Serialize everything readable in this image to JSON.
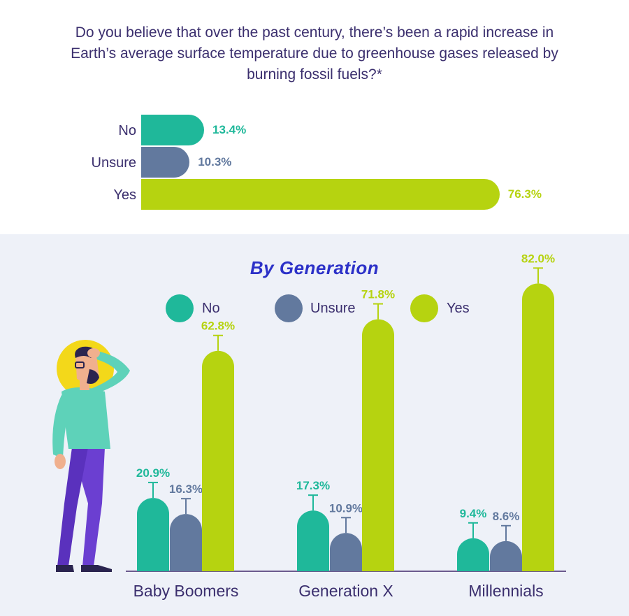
{
  "question": "Do you believe that over the past century, there’s been a rapid increase in Earth’s average surface temperature due to greenhouse gases released by burning fossil fuels?*",
  "overall": {
    "bars": [
      {
        "label": "No",
        "value": 13.4,
        "display": "13.4%"
      },
      {
        "label": "Unsure",
        "value": 10.3,
        "display": "10.3%"
      },
      {
        "label": "Yes",
        "value": 76.3,
        "display": "76.3%"
      }
    ]
  },
  "section_title": "By Generation",
  "legend": [
    {
      "label": "No"
    },
    {
      "label": "Unsure"
    },
    {
      "label": "Yes"
    }
  ],
  "colors": {
    "no": "#1fb89a",
    "unsure": "#62799e",
    "yes": "#b6d310",
    "text": "#3b2f6e",
    "title": "#2c31c8"
  },
  "chart_data": [
    {
      "type": "bar",
      "orientation": "horizontal",
      "categories": [
        "No",
        "Unsure",
        "Yes"
      ],
      "values": [
        13.4,
        10.3,
        76.3
      ],
      "data_labels": [
        "13.4%",
        "10.3%",
        "76.3%"
      ],
      "xlim": [
        0,
        100
      ],
      "grid": false
    },
    {
      "type": "bar",
      "title": "By Generation",
      "categories": [
        "Baby Boomers",
        "Generation X",
        "Millennials"
      ],
      "series": [
        {
          "name": "No",
          "values": [
            20.9,
            17.3,
            9.4
          ],
          "labels": [
            "20.9%",
            "17.3%",
            "9.4%"
          ]
        },
        {
          "name": "Unsure",
          "values": [
            16.3,
            10.9,
            8.6
          ],
          "labels": [
            "16.3%",
            "10.9%",
            "8.6%"
          ]
        },
        {
          "name": "Yes",
          "values": [
            62.8,
            71.8,
            82.0
          ],
          "labels": [
            "62.8%",
            "71.8%",
            "82.0%"
          ]
        }
      ],
      "ylim": [
        0,
        100
      ],
      "legend": "top-center",
      "grid": false
    }
  ]
}
